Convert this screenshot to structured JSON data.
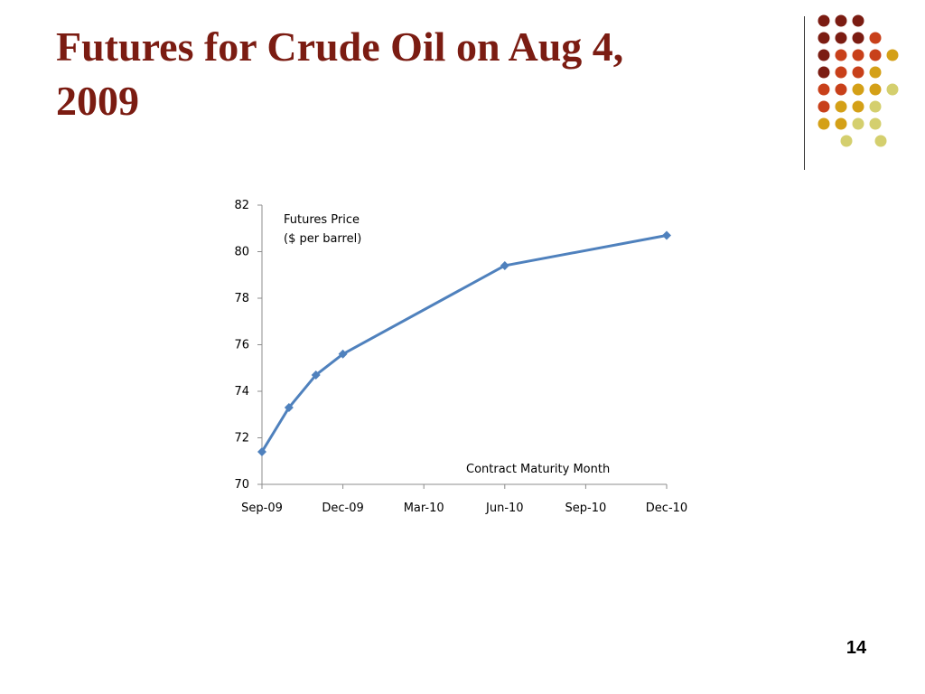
{
  "slide": {
    "title_line1": "Futures for Crude Oil on Aug 4,",
    "title_line2": "2009",
    "page_number": "14"
  },
  "colors": {
    "title": "#7b1c12",
    "series_line": "#4f81bd",
    "dots": [
      "#7b1c12",
      "#c8401a",
      "#d4a017",
      "#d4cf6e"
    ]
  },
  "chart_data": {
    "type": "line",
    "title": "",
    "xlabel": "Contract Maturity Month",
    "ylabel": "Futures Price ($ per barrel)",
    "ylabel_lines": [
      "Futures Price",
      "($ per  barrel)"
    ],
    "x_ticks": [
      "Sep-09",
      "Dec-09",
      "Mar-10",
      "Jun-10",
      "Sep-10",
      "Dec-10"
    ],
    "ylim": [
      70,
      82
    ],
    "y_ticks": [
      70,
      72,
      74,
      76,
      78,
      80,
      82
    ],
    "grid": false,
    "legend": "none",
    "series": [
      {
        "points": [
          {
            "x": "2009-09",
            "y": 71.4
          },
          {
            "x": "2009-10",
            "y": 73.3
          },
          {
            "x": "2009-11",
            "y": 74.7
          },
          {
            "x": "2009-12",
            "y": 75.6
          },
          {
            "x": "2010-06",
            "y": 79.4
          },
          {
            "x": "2010-12",
            "y": 80.7
          }
        ]
      }
    ]
  }
}
